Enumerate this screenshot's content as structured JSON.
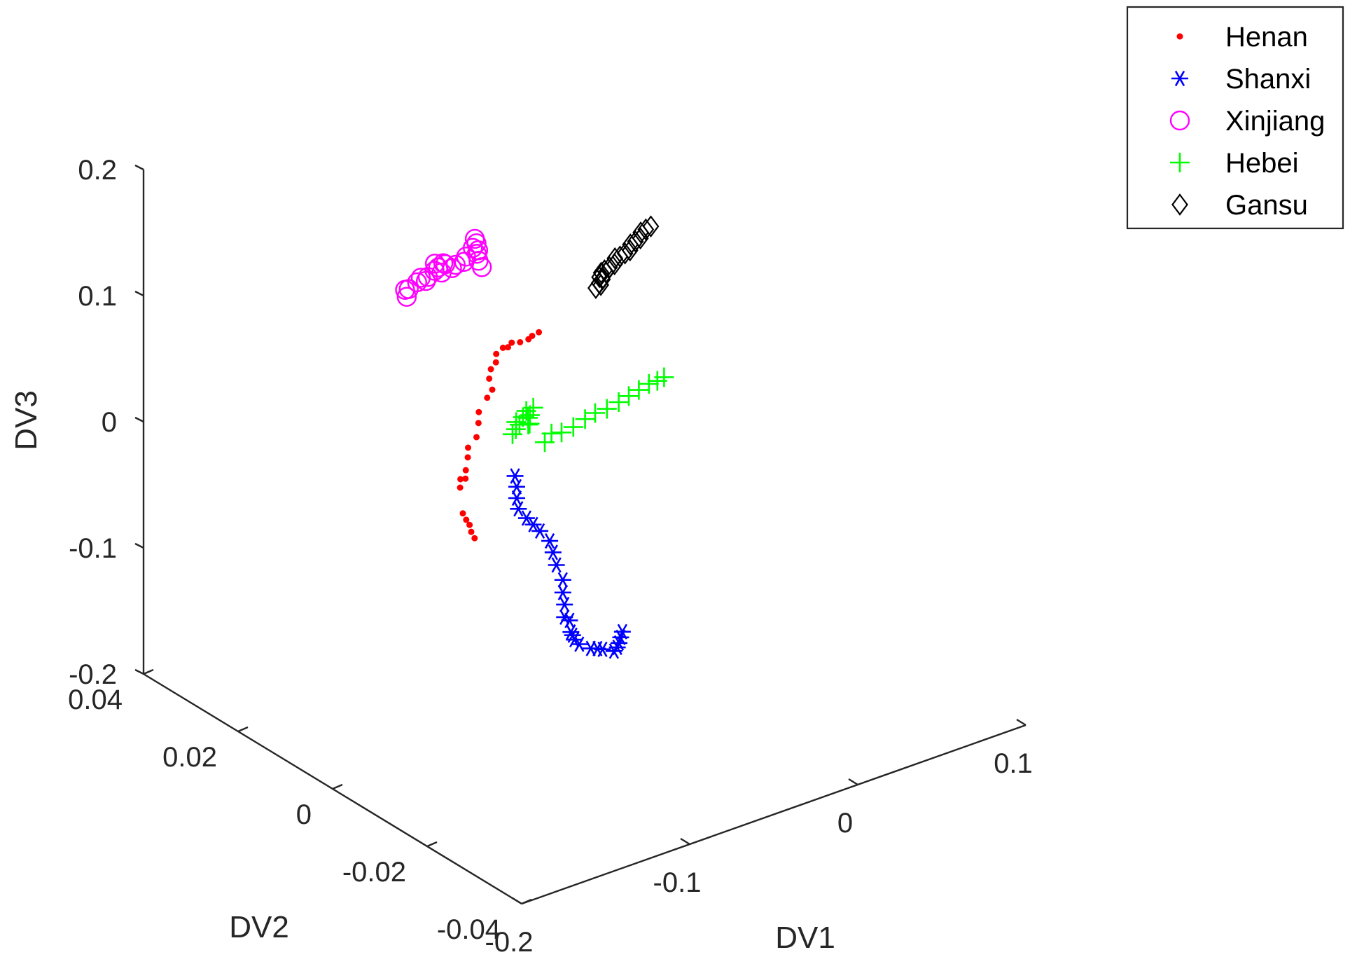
{
  "chart_data": {
    "type": "scatter",
    "projection": "3d",
    "title": "",
    "xlabel": "DV1",
    "ylabel": "DV2",
    "zlabel": "DV3",
    "xlim": [
      -0.2,
      0.1
    ],
    "ylim": [
      -0.04,
      0.04
    ],
    "zlim": [
      -0.2,
      0.2
    ],
    "x_ticks": [
      "-0.2",
      "-0.1",
      "0",
      "0.1"
    ],
    "y_ticks": [
      "-0.04",
      "-0.02",
      "0",
      "0.02",
      "0.04"
    ],
    "z_ticks": [
      "-0.2",
      "-0.1",
      "0",
      "0.1",
      "0.2"
    ],
    "grid": false,
    "legend_position": "top-right",
    "series": [
      {
        "name": "Henan",
        "marker": "dot",
        "color": "#ff0000",
        "points": [
          [
            -0.1,
            0.008,
            -0.047
          ],
          [
            -0.098,
            0.008,
            -0.053
          ],
          [
            -0.096,
            0.008,
            -0.058
          ],
          [
            -0.095,
            0.008,
            -0.064
          ],
          [
            -0.093,
            0.008,
            -0.07
          ],
          [
            -0.096,
            0.01,
            -0.033
          ],
          [
            -0.093,
            0.011,
            -0.03
          ],
          [
            -0.09,
            0.011,
            -0.031
          ],
          [
            -0.087,
            0.012,
            -0.028
          ],
          [
            -0.083,
            0.013,
            -0.022
          ],
          [
            -0.08,
            0.014,
            -0.018
          ],
          [
            -0.075,
            0.014,
            -0.012
          ],
          [
            -0.071,
            0.015,
            -0.005
          ],
          [
            -0.068,
            0.016,
            0.0
          ],
          [
            -0.063,
            0.016,
            0.009
          ],
          [
            -0.06,
            0.016,
            0.014
          ],
          [
            -0.059,
            0.017,
            0.02
          ],
          [
            -0.058,
            0.017,
            0.027
          ],
          [
            -0.055,
            0.017,
            0.031
          ],
          [
            -0.052,
            0.018,
            0.034
          ],
          [
            -0.048,
            0.018,
            0.037
          ],
          [
            -0.045,
            0.018,
            0.036
          ],
          [
            -0.04,
            0.019,
            0.035
          ],
          [
            -0.035,
            0.019,
            0.033
          ],
          [
            -0.03,
            0.019,
            0.033
          ],
          [
            -0.025,
            0.02,
            0.031
          ],
          [
            -0.021,
            0.02,
            0.032
          ]
        ]
      },
      {
        "name": "Shanxi",
        "marker": "asterisk",
        "color": "#0000ff",
        "points": [
          [
            -0.083,
            0.003,
            -0.014
          ],
          [
            -0.082,
            0.003,
            -0.023
          ],
          [
            -0.082,
            0.003,
            -0.032
          ],
          [
            -0.081,
            0.003,
            -0.041
          ],
          [
            -0.079,
            0.002,
            -0.047
          ],
          [
            -0.075,
            0.002,
            -0.054
          ],
          [
            -0.071,
            0.002,
            -0.061
          ],
          [
            -0.068,
            0.001,
            -0.068
          ],
          [
            -0.066,
            0.001,
            -0.078
          ],
          [
            -0.064,
            0.001,
            -0.089
          ],
          [
            -0.063,
            0.0,
            -0.099
          ],
          [
            -0.063,
            0.0,
            -0.109
          ],
          [
            -0.062,
            0.0,
            -0.119
          ],
          [
            -0.062,
            0.0,
            -0.129
          ],
          [
            -0.061,
            -0.001,
            -0.139
          ],
          [
            -0.059,
            -0.001,
            -0.146
          ],
          [
            -0.056,
            -0.001,
            -0.151
          ],
          [
            -0.052,
            -0.002,
            -0.154
          ],
          [
            -0.048,
            -0.002,
            -0.156
          ],
          [
            -0.045,
            -0.002,
            -0.158
          ],
          [
            -0.041,
            -0.003,
            -0.159
          ],
          [
            -0.039,
            -0.003,
            -0.157
          ],
          [
            -0.038,
            -0.003,
            -0.154
          ],
          [
            -0.037,
            -0.003,
            -0.15
          ],
          [
            -0.036,
            -0.003,
            -0.146
          ],
          [
            -0.059,
            0.0,
            -0.133
          ],
          [
            -0.06,
            -0.001,
            -0.142
          ]
        ]
      },
      {
        "name": "Xinjiang",
        "marker": "circle",
        "color": "#ff00ff",
        "points": [
          [
            -0.095,
            0.022,
            0.096
          ],
          [
            -0.094,
            0.022,
            0.09
          ],
          [
            -0.09,
            0.023,
            0.092
          ],
          [
            -0.085,
            0.023,
            0.095
          ],
          [
            -0.08,
            0.024,
            0.094
          ],
          [
            -0.077,
            0.024,
            0.09
          ],
          [
            -0.073,
            0.025,
            0.089
          ],
          [
            -0.069,
            0.025,
            0.092
          ],
          [
            -0.066,
            0.026,
            0.094
          ],
          [
            -0.064,
            0.026,
            0.09
          ],
          [
            -0.062,
            0.026,
            0.085
          ],
          [
            -0.061,
            0.026,
            0.092
          ],
          [
            -0.057,
            0.027,
            0.087
          ],
          [
            -0.053,
            0.027,
            0.082
          ],
          [
            -0.048,
            0.028,
            0.08
          ],
          [
            -0.043,
            0.028,
            0.08
          ],
          [
            -0.039,
            0.029,
            0.08
          ],
          [
            -0.035,
            0.029,
            0.085
          ],
          [
            -0.031,
            0.03,
            0.088
          ],
          [
            -0.03,
            0.03,
            0.084
          ],
          [
            -0.029,
            0.03,
            0.078
          ],
          [
            -0.027,
            0.031,
            0.072
          ],
          [
            -0.026,
            0.031,
            0.066
          ],
          [
            -0.024,
            0.031,
            0.06
          ]
        ]
      },
      {
        "name": "Hebei",
        "marker": "plus",
        "color": "#00ff00",
        "points": [
          [
            -0.062,
            0.011,
            -0.009
          ],
          [
            -0.06,
            0.011,
            -0.006
          ],
          [
            -0.057,
            0.012,
            -0.004
          ],
          [
            -0.055,
            0.012,
            -0.007
          ],
          [
            -0.053,
            0.012,
            -0.002
          ],
          [
            -0.051,
            0.012,
            0.002
          ],
          [
            -0.05,
            0.012,
            -0.004
          ],
          [
            -0.049,
            0.012,
            -0.009
          ],
          [
            -0.047,
            0.013,
            -0.013
          ],
          [
            -0.046,
            0.013,
            -0.006
          ],
          [
            -0.044,
            0.013,
            -0.001
          ],
          [
            -0.04,
            0.012,
            -0.028
          ],
          [
            -0.036,
            0.012,
            -0.023
          ],
          [
            -0.03,
            0.012,
            -0.025
          ],
          [
            -0.023,
            0.012,
            -0.024
          ],
          [
            -0.016,
            0.012,
            -0.021
          ],
          [
            -0.01,
            0.012,
            -0.019
          ],
          [
            -0.003,
            0.012,
            -0.019
          ],
          [
            0.004,
            0.012,
            -0.017
          ],
          [
            0.01,
            0.012,
            -0.015
          ],
          [
            0.016,
            0.012,
            -0.013
          ],
          [
            0.022,
            0.012,
            -0.011
          ],
          [
            0.027,
            0.012,
            -0.011
          ],
          [
            0.031,
            0.012,
            -0.01
          ]
        ]
      },
      {
        "name": "Gansu",
        "marker": "diamond",
        "color": "#000000",
        "points": [
          [
            0.041,
            0.03,
            0.015
          ],
          [
            0.043,
            0.03,
            0.018
          ],
          [
            0.045,
            0.03,
            0.02
          ],
          [
            0.047,
            0.031,
            0.022
          ],
          [
            0.049,
            0.031,
            0.023
          ],
          [
            0.052,
            0.031,
            0.024
          ],
          [
            0.055,
            0.031,
            0.025
          ],
          [
            0.058,
            0.032,
            0.026
          ],
          [
            0.061,
            0.032,
            0.026
          ],
          [
            0.064,
            0.032,
            0.027
          ],
          [
            0.067,
            0.032,
            0.028
          ],
          [
            0.07,
            0.033,
            0.029
          ],
          [
            0.073,
            0.033,
            0.03
          ],
          [
            0.076,
            0.033,
            0.031
          ],
          [
            0.079,
            0.034,
            0.032
          ],
          [
            0.082,
            0.034,
            0.033
          ],
          [
            0.085,
            0.034,
            0.034
          ],
          [
            0.044,
            0.03,
            0.016
          ],
          [
            0.046,
            0.031,
            0.019
          ],
          [
            0.05,
            0.031,
            0.021
          ]
        ]
      }
    ]
  }
}
